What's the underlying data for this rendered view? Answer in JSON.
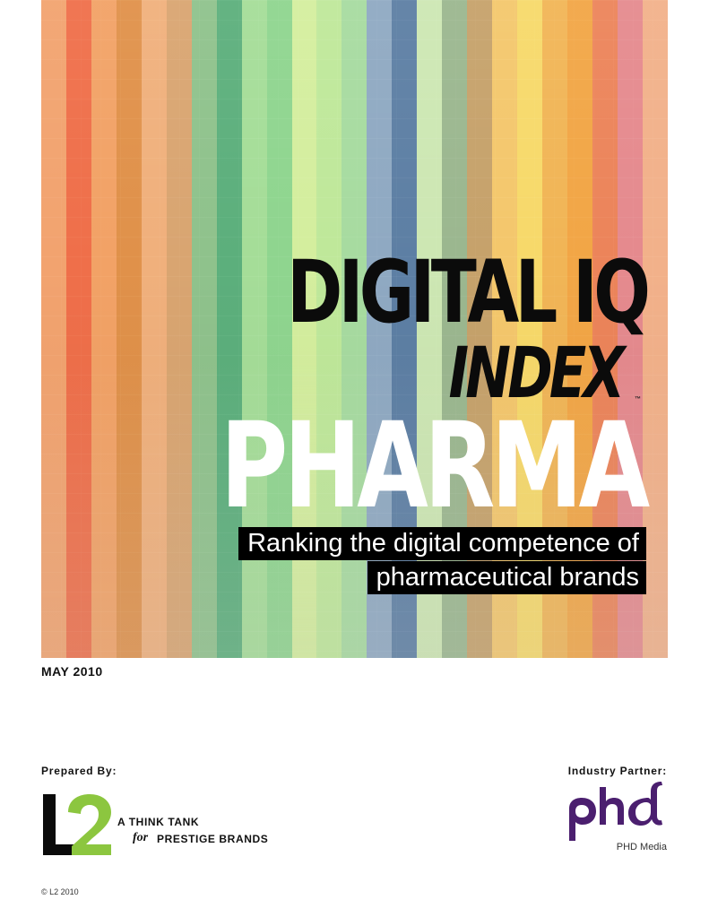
{
  "cover": {
    "title_line1": "DIGITAL IQ",
    "title_line2": "INDEX",
    "trademark": "™",
    "title_line3": "PHARMA",
    "subtitle_line1": "Ranking the digital competence of",
    "subtitle_line2": "pharmaceutical brands",
    "stripe_colors": [
      "#f2a36f",
      "#ef6f4a",
      "#f2a266",
      "#e0914a",
      "#f0b07c",
      "#d9a571",
      "#8fc28c",
      "#5caf7c",
      "#a5dd98",
      "#8fd58f",
      "#d4ee9e",
      "#bfe89a",
      "#a7dba0",
      "#8fa9c2",
      "#5d7fa4",
      "#cde7b3",
      "#9bb78f",
      "#c6a26b",
      "#f4c76c",
      "#f7d96a",
      "#f1b556",
      "#f2a646",
      "#ec845a",
      "#e58a8e",
      "#f2b18a"
    ]
  },
  "date": "MAY 2010",
  "prepared_by": {
    "label": "Prepared By:",
    "logo_text": "L2",
    "tagline_line1": "A THINK TANK",
    "tagline_for": "for",
    "tagline_line2": "PRESTIGE BRANDS"
  },
  "partner": {
    "label": "Industry Partner:",
    "logo_text": "phd",
    "name": "PHD Media"
  },
  "copyright": "© L2 2010",
  "colors": {
    "l2_green": "#8cc63f",
    "phd_purple": "#4b1f6f",
    "subtitle_bg": "#000000"
  }
}
